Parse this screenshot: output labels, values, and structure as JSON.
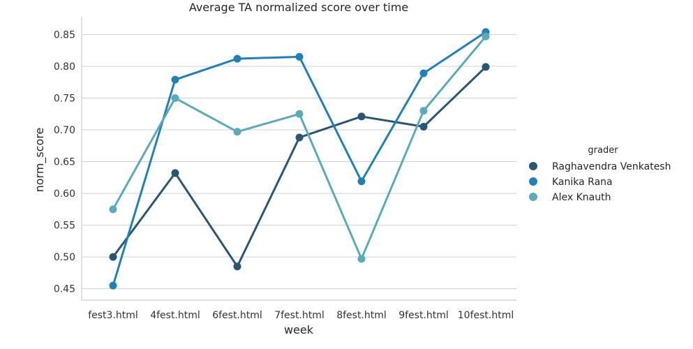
{
  "chart_data": {
    "type": "line",
    "title": "Average TA normalized score over time",
    "xlabel": "week",
    "ylabel": "norm_score",
    "categories": [
      "fest3.html",
      "4fest.html",
      "6fest.html",
      "7fest.html",
      "8fest.html",
      "9fest.html",
      "10fest.html"
    ],
    "ylim": [
      0.432,
      0.878
    ],
    "yticks": [
      0.45,
      0.5,
      0.55,
      0.6,
      0.65,
      0.7,
      0.75,
      0.8,
      0.85
    ],
    "ytick_labels": [
      "0.45",
      "0.50",
      "0.55",
      "0.60",
      "0.65",
      "0.70",
      "0.75",
      "0.80",
      "0.85"
    ],
    "grid": "horizontal",
    "legend": {
      "title": "grader",
      "position": "right"
    },
    "series": [
      {
        "name": "Raghavendra Venkatesh",
        "color": "#2a5674",
        "values": [
          0.5,
          0.632,
          0.485,
          0.688,
          0.721,
          0.705,
          0.799
        ]
      },
      {
        "name": "Kanika Rana",
        "color": "#2180b8",
        "values": [
          0.455,
          0.779,
          0.812,
          0.815,
          0.619,
          0.789,
          0.854
        ]
      },
      {
        "name": "Alex Knauth",
        "color": "#5aaab8",
        "values": [
          0.575,
          0.75,
          0.697,
          0.725,
          0.497,
          0.73,
          0.847
        ]
      }
    ]
  }
}
